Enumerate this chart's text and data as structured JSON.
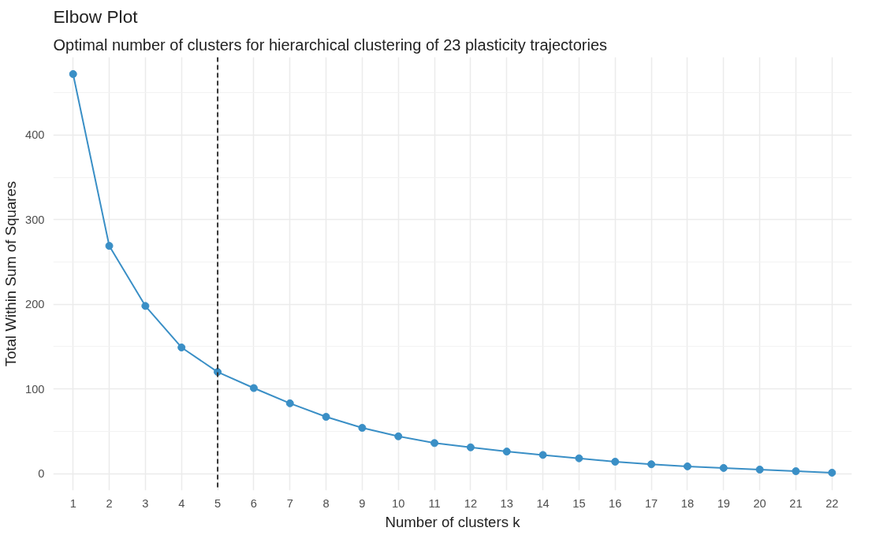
{
  "chart_data": {
    "type": "line",
    "title": "Elbow Plot",
    "subtitle": "Optimal number of clusters for hierarchical clustering of 23 plasticity trajectories",
    "xlabel": "Number of clusters k",
    "ylabel": "Total Within Sum of Squares",
    "x": [
      1,
      2,
      3,
      4,
      5,
      6,
      7,
      8,
      9,
      10,
      11,
      12,
      13,
      14,
      15,
      16,
      17,
      18,
      19,
      20,
      21,
      22
    ],
    "series": [
      {
        "color": "#3a8fc6",
        "values": [
          472,
          269,
          198,
          149,
          120,
          101,
          83,
          67,
          54,
          44,
          36,
          31,
          26,
          22,
          18,
          14,
          11,
          8.5,
          6.6,
          4.7,
          2.8,
          1
        ]
      }
    ],
    "xlim": [
      0.45,
      22.55
    ],
    "ylim": [
      -20,
      492
    ],
    "xticks": [
      1,
      2,
      3,
      4,
      5,
      6,
      7,
      8,
      9,
      10,
      11,
      12,
      13,
      14,
      15,
      16,
      17,
      18,
      19,
      20,
      21,
      22
    ],
    "yticks": [
      0,
      100,
      200,
      300,
      400
    ],
    "ref_lines": [
      {
        "axis": "x",
        "value": 5,
        "color": "#333333",
        "line_style": "dashed"
      }
    ],
    "grid": true,
    "marker": "circle",
    "line_style": "solid"
  }
}
